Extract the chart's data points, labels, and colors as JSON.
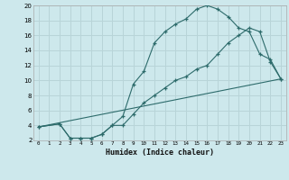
{
  "xlabel": "Humidex (Indice chaleur)",
  "background_color": "#cde8ec",
  "grid_color": "#b8d4d8",
  "line_color": "#2d6b6b",
  "xlim": [
    -0.5,
    23.5
  ],
  "ylim": [
    2,
    20
  ],
  "xticks": [
    0,
    1,
    2,
    3,
    4,
    5,
    6,
    7,
    8,
    9,
    10,
    11,
    12,
    13,
    14,
    15,
    16,
    17,
    18,
    19,
    20,
    21,
    22,
    23
  ],
  "yticks": [
    2,
    4,
    6,
    8,
    10,
    12,
    14,
    16,
    18,
    20
  ],
  "line1_x": [
    0,
    2,
    3,
    4,
    5,
    6,
    7,
    8,
    9,
    10,
    11,
    12,
    13,
    14,
    15,
    16,
    17,
    18,
    19,
    20,
    21,
    22,
    23
  ],
  "line1_y": [
    3.8,
    4.2,
    2.3,
    2.3,
    2.3,
    2.8,
    4.0,
    5.2,
    9.5,
    11.2,
    15.0,
    16.5,
    17.5,
    18.2,
    19.5,
    20.0,
    19.5,
    18.5,
    17.0,
    16.5,
    13.5,
    12.8,
    10.2
  ],
  "line2_x": [
    0,
    2,
    3,
    4,
    5,
    6,
    7,
    8,
    9,
    10,
    11,
    12,
    13,
    14,
    15,
    16,
    17,
    18,
    19,
    20,
    21,
    22,
    23
  ],
  "line2_y": [
    3.8,
    4.2,
    2.3,
    2.3,
    2.3,
    2.8,
    4.0,
    4.0,
    5.5,
    7.0,
    8.0,
    9.0,
    10.0,
    10.5,
    11.5,
    12.0,
    13.5,
    15.0,
    16.0,
    17.0,
    16.5,
    12.5,
    10.2
  ],
  "line3_x": [
    0,
    23
  ],
  "line3_y": [
    3.8,
    10.2
  ]
}
